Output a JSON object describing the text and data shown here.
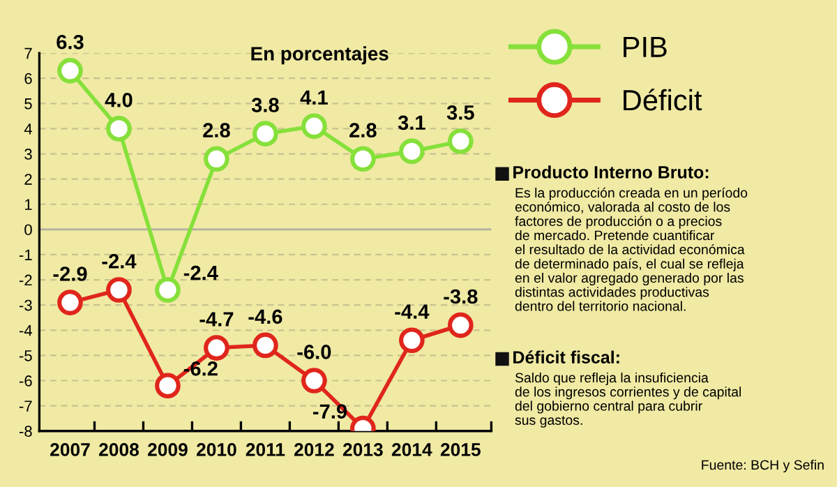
{
  "chart_data": {
    "type": "line",
    "title": "En porcentajes",
    "categories": [
      "2007",
      "2008",
      "2009",
      "2010",
      "2011",
      "2012",
      "2013",
      "2014",
      "2015"
    ],
    "series": [
      {
        "name": "PIB",
        "color": "#86e03a",
        "values": [
          6.3,
          4.0,
          -2.4,
          2.8,
          3.8,
          4.1,
          2.8,
          3.1,
          3.5
        ],
        "value_labels": [
          "6.3",
          "4.0",
          "-2.4",
          "2.8",
          "3.8",
          "4.1",
          "2.8",
          "3.1",
          "3.5"
        ]
      },
      {
        "name": "Déficit",
        "color": "#e0261c",
        "values": [
          -2.9,
          -2.4,
          -6.2,
          -4.7,
          -4.6,
          -6.0,
          -7.9,
          -4.4,
          -3.8
        ],
        "value_labels": [
          "-2.9",
          "-2.4",
          "-6.2",
          "-4.7",
          "-4.6",
          "-6.0",
          "-7.9",
          "-4.4",
          "-3.8"
        ]
      }
    ],
    "ylim": [
      -8,
      7
    ],
    "yticks": [
      -8,
      -7,
      -6,
      -5,
      -4,
      -3,
      -2,
      -1,
      0,
      1,
      2,
      3,
      4,
      5,
      6,
      7
    ],
    "grid": "y",
    "legend": "top right",
    "marker": "circle",
    "line_style": "solid",
    "ref_lines": [
      {
        "axis": "y",
        "value": 0,
        "color": "#b0b0a0"
      }
    ],
    "annotations": [
      "Producto Interno Bruto:",
      "Es la producción creada en un período\neconómico, valorada al costo de los\nfactores de producción o a precios\nde mercado. Pretende cuantificar\nel resultado de la actividad económica\nde determinado país, el cual se refleja\nen el valor agregado generado por las\ndistintas actividades productivas\ndentro del territorio nacional.",
      "Déficit fiscal:",
      "Saldo que refleja la insuficiencia\nde los ingresos corrientes y de capital\ndel gobierno central para cubrir\nsus gastos.",
      "Fuente: BCH y Sefin"
    ]
  }
}
